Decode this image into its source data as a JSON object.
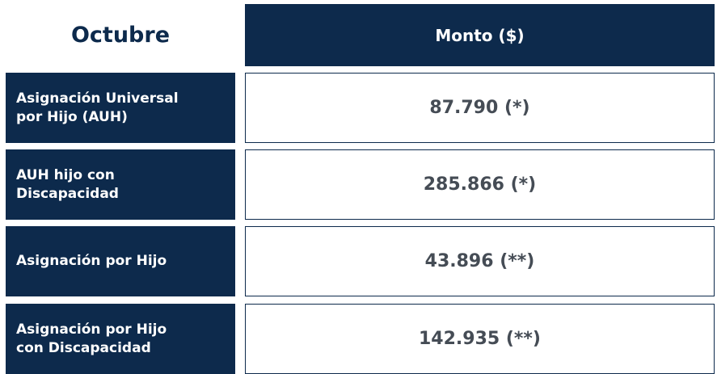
{
  "header": {
    "title": "Octubre",
    "column": "Monto ($)"
  },
  "table": {
    "rows": [
      [
        "Asignación Universal por Hijo (AUH)",
        "87.790 (*)"
      ],
      [
        "AUH hijo con Discapacidad",
        "285.866 (*)"
      ],
      [
        "Asignación por Hijo",
        "43.896 (**)"
      ],
      [
        "Asignación por Hijo con Discapacidad",
        "142.935 (**)"
      ]
    ]
  }
}
